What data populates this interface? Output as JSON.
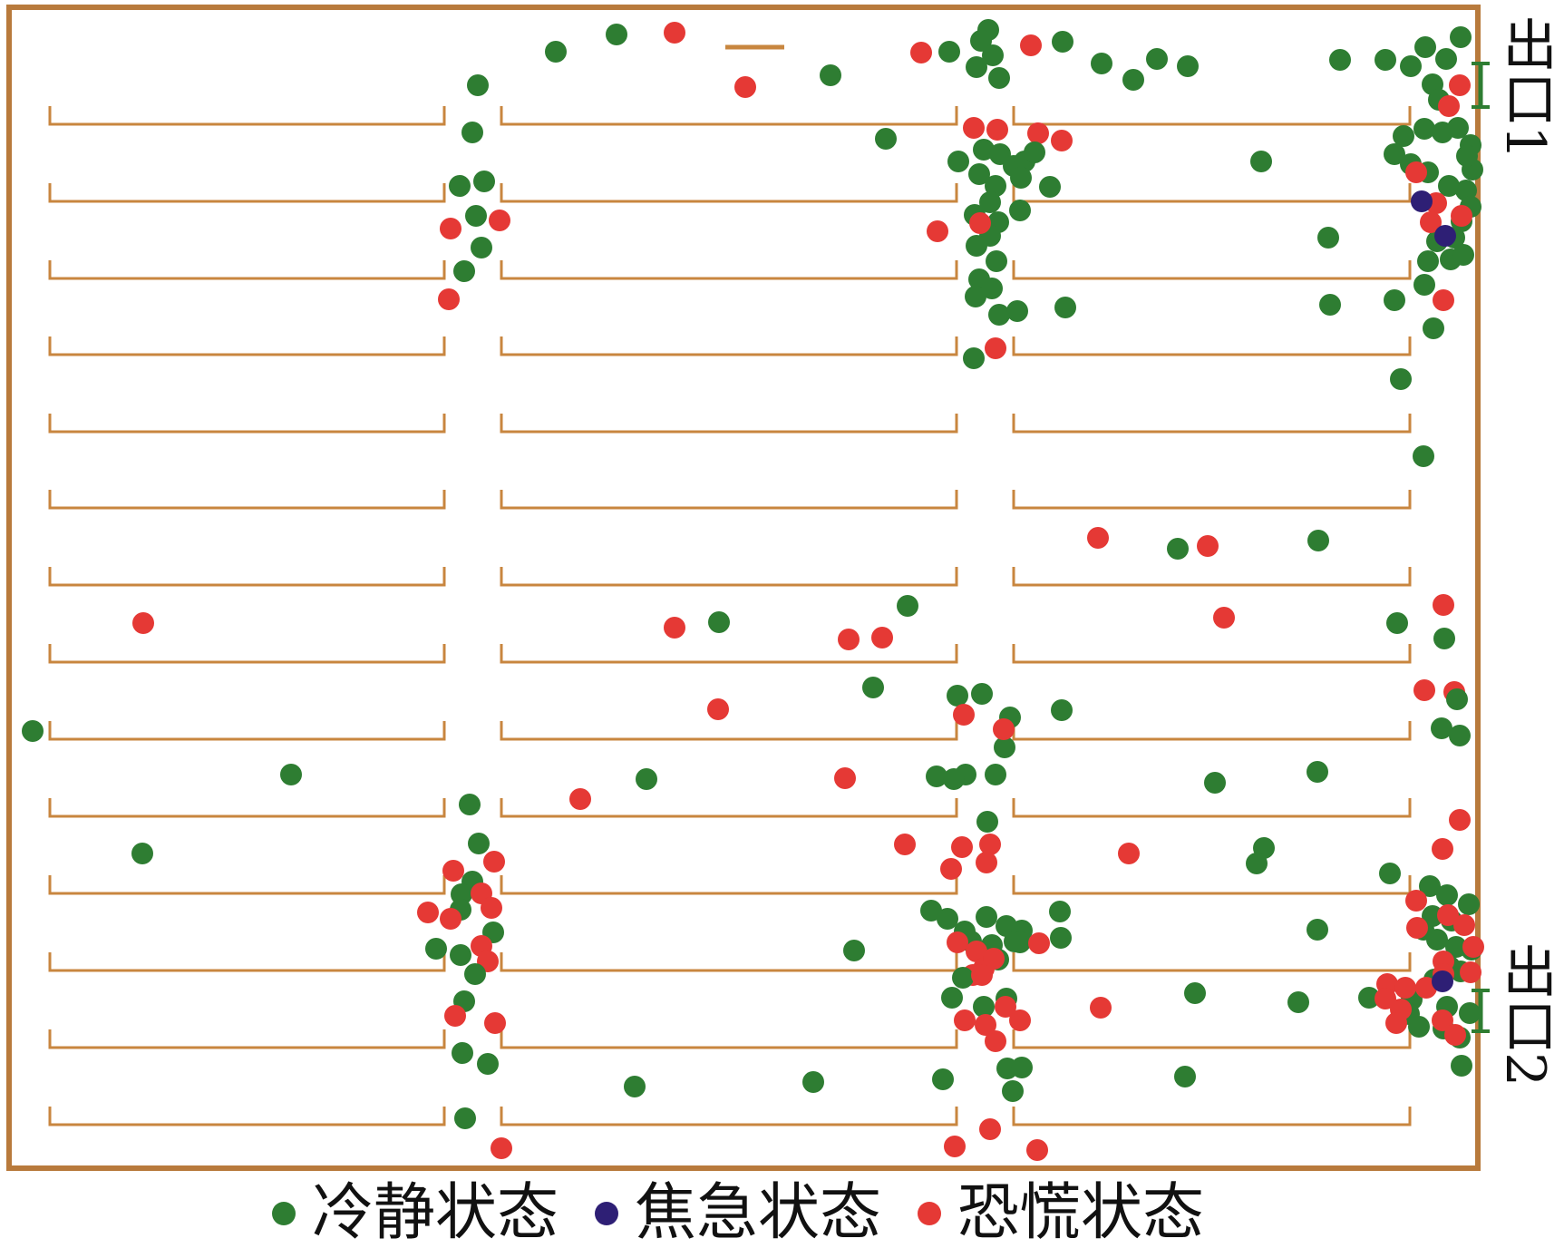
{
  "colors": {
    "wall": "#b87a3c",
    "shelf": "#c8863f",
    "exit_marker": "#2e7d32",
    "calm": "#2e7d32",
    "anxious": "#2e1f75",
    "panic": "#e53935"
  },
  "exits": [
    {
      "label": "出口1"
    },
    {
      "label": "出口2"
    }
  ],
  "legend": [
    {
      "key": "calm",
      "label": "冷静状态"
    },
    {
      "key": "anxious",
      "label": "焦急状态"
    },
    {
      "key": "panic",
      "label": "恐慌状态"
    }
  ]
}
